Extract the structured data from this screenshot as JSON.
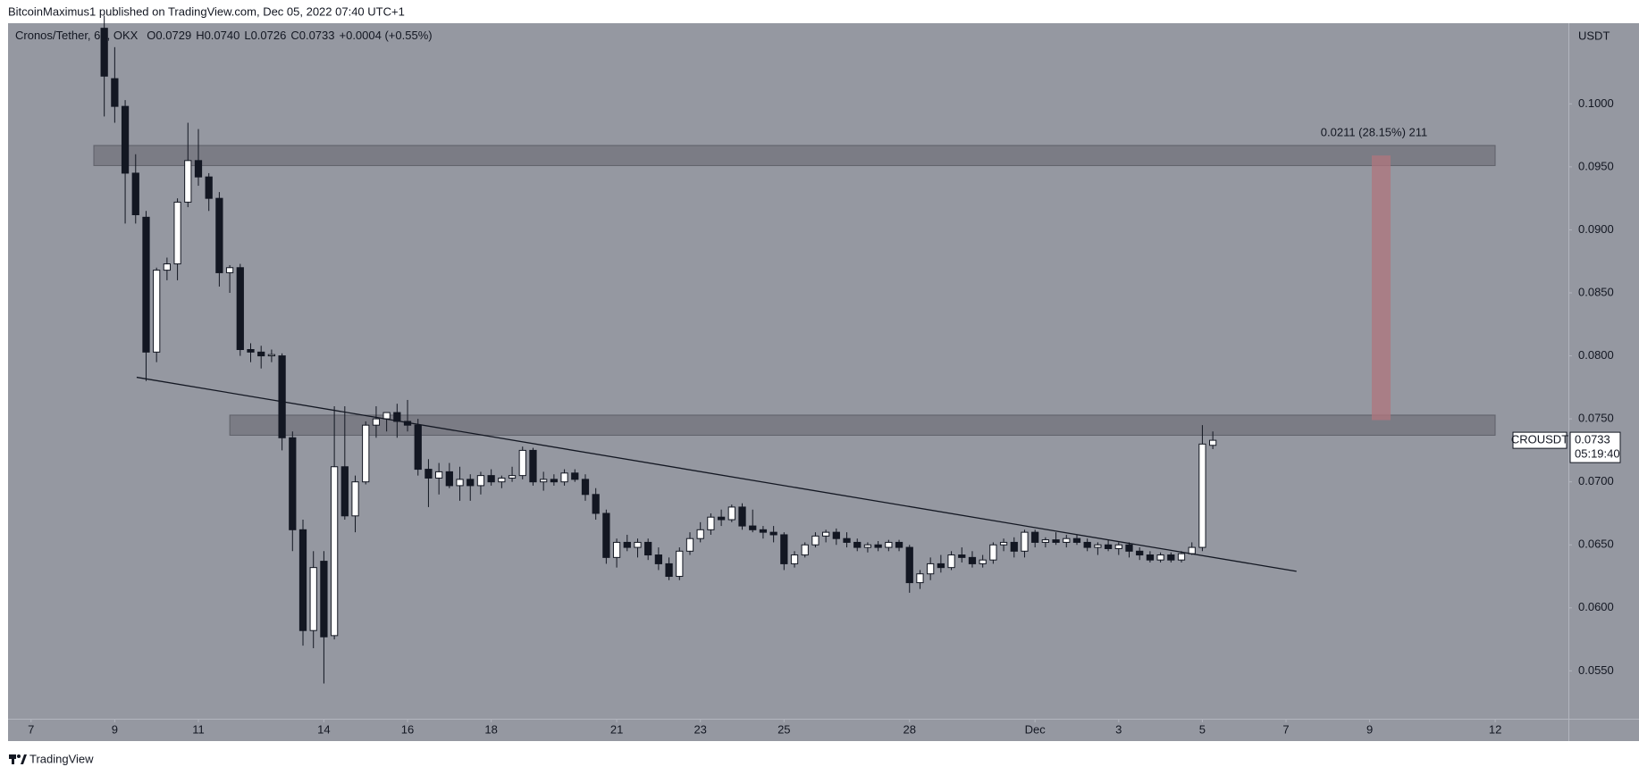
{
  "header": "BitcoinMaximus1 published on TradingView.com, Dec 05, 2022 07:40 UTC+1",
  "footer": "TradingView",
  "chart_data": {
    "type": "candlestick",
    "title": "Cronos/Tether, 6h, OKX",
    "ohlc_legend": [
      {
        "label": "O",
        "value": "0.0729"
      },
      {
        "label": "H",
        "value": "0.0740"
      },
      {
        "label": "L",
        "value": "0.0726"
      },
      {
        "label": "C",
        "value": "0.0733"
      }
    ],
    "change": "+0.0004 (+0.55%)",
    "y_axis_label": "USDT",
    "x": [
      8.75,
      9,
      9.25,
      9.5,
      9.75,
      10,
      10.25,
      10.5,
      10.75,
      11,
      11.25,
      11.5,
      11.75,
      12,
      12.25,
      12.5,
      12.75,
      13,
      13.25,
      13.5,
      13.75,
      14,
      14.25,
      14.5,
      14.75,
      15,
      15.25,
      15.5,
      15.75,
      16,
      16.25,
      16.5,
      16.75,
      17,
      17.25,
      17.5,
      17.75,
      18,
      18.25,
      18.5,
      18.75,
      19,
      19.25,
      19.5,
      19.75,
      20,
      20.25,
      20.5,
      20.75,
      21,
      21.25,
      21.5,
      21.75,
      22,
      22.25,
      22.5,
      22.75,
      23,
      23.25,
      23.5,
      23.75,
      24,
      24.25,
      24.5,
      24.75,
      25,
      25.25,
      25.5,
      25.75,
      26,
      26.25,
      26.5,
      26.75,
      27,
      27.25,
      27.5,
      27.75,
      28,
      28.25,
      28.5,
      28.75,
      29,
      29.25,
      29.5,
      29.75,
      30,
      30.25,
      30.5,
      30.75,
      31,
      31.25,
      31.5,
      31.75,
      32,
      32.25,
      32.5,
      32.75,
      33,
      33.25,
      33.5,
      33.75,
      34,
      34.25,
      34.5,
      34.75,
      35,
      35.25
    ],
    "series": [
      {
        "name": "CROUSDT",
        "up_color": "#ffffff",
        "down_color": "#131722",
        "open": [
          0.106,
          0.102,
          0.0998,
          0.0945,
          0.091,
          0.0803,
          0.0868,
          0.0873,
          0.0922,
          0.0955,
          0.0942,
          0.0925,
          0.0866,
          0.087,
          0.0805,
          0.0803,
          0.08,
          0.08,
          0.0735,
          0.0662,
          0.0582,
          0.0637,
          0.0578,
          0.0712,
          0.0673,
          0.07,
          0.0745,
          0.075,
          0.0755,
          0.0748,
          0.0745,
          0.071,
          0.0703,
          0.0708,
          0.0697,
          0.0702,
          0.0697,
          0.0705,
          0.07,
          0.0703,
          0.0705,
          0.0725,
          0.07,
          0.0702,
          0.07,
          0.0707,
          0.0702,
          0.069,
          0.0675,
          0.064,
          0.0652,
          0.0648,
          0.0652,
          0.0642,
          0.0635,
          0.0625,
          0.0645,
          0.0655,
          0.0662,
          0.0672,
          0.067,
          0.068,
          0.0665,
          0.0662,
          0.066,
          0.0658,
          0.0635,
          0.0642,
          0.065,
          0.0657,
          0.066,
          0.0655,
          0.0652,
          0.0648,
          0.065,
          0.0648,
          0.0652,
          0.0648,
          0.062,
          0.0627,
          0.0635,
          0.0632,
          0.0642,
          0.064,
          0.0635,
          0.0638,
          0.065,
          0.0652,
          0.0645,
          0.066,
          0.0652,
          0.0654,
          0.0652,
          0.0655,
          0.0652,
          0.0648,
          0.065,
          0.0647,
          0.065,
          0.0645,
          0.0642,
          0.0638,
          0.0642,
          0.0638,
          0.0643,
          0.0648,
          0.0729
        ],
        "high": [
          0.107,
          0.1045,
          0.1003,
          0.096,
          0.0915,
          0.087,
          0.0878,
          0.0925,
          0.0985,
          0.098,
          0.0945,
          0.093,
          0.0872,
          0.0873,
          0.081,
          0.0808,
          0.0805,
          0.0802,
          0.074,
          0.067,
          0.0645,
          0.0645,
          0.076,
          0.076,
          0.0705,
          0.0748,
          0.076,
          0.0755,
          0.0762,
          0.0765,
          0.075,
          0.0718,
          0.0715,
          0.0715,
          0.0712,
          0.0706,
          0.0708,
          0.071,
          0.0705,
          0.0712,
          0.0728,
          0.0727,
          0.0708,
          0.0706,
          0.071,
          0.071,
          0.0706,
          0.0695,
          0.0678,
          0.0655,
          0.0658,
          0.0655,
          0.0655,
          0.0648,
          0.064,
          0.0648,
          0.066,
          0.0668,
          0.0675,
          0.0678,
          0.0682,
          0.0683,
          0.0678,
          0.0665,
          0.0665,
          0.066,
          0.0645,
          0.0652,
          0.066,
          0.0662,
          0.0663,
          0.066,
          0.0655,
          0.0652,
          0.0653,
          0.0654,
          0.0654,
          0.065,
          0.063,
          0.064,
          0.0642,
          0.0645,
          0.0648,
          0.0645,
          0.0642,
          0.0652,
          0.0655,
          0.0656,
          0.0662,
          0.0662,
          0.0656,
          0.066,
          0.0658,
          0.0658,
          0.0655,
          0.0652,
          0.0654,
          0.0652,
          0.0652,
          0.0648,
          0.0645,
          0.0644,
          0.0644,
          0.0645,
          0.0652,
          0.0745,
          0.074
        ],
        "low": [
          0.099,
          0.0985,
          0.0905,
          0.0905,
          0.078,
          0.0795,
          0.086,
          0.086,
          0.0918,
          0.0935,
          0.0915,
          0.0855,
          0.085,
          0.08,
          0.0795,
          0.079,
          0.0795,
          0.0725,
          0.0645,
          0.057,
          0.0568,
          0.054,
          0.0575,
          0.067,
          0.066,
          0.0698,
          0.0735,
          0.074,
          0.0735,
          0.074,
          0.0705,
          0.068,
          0.069,
          0.0695,
          0.0685,
          0.0685,
          0.069,
          0.0697,
          0.0695,
          0.07,
          0.0702,
          0.0697,
          0.0693,
          0.0697,
          0.0697,
          0.07,
          0.0685,
          0.067,
          0.0635,
          0.0632,
          0.0645,
          0.064,
          0.0638,
          0.063,
          0.0622,
          0.0622,
          0.0642,
          0.0652,
          0.0658,
          0.0665,
          0.0668,
          0.0662,
          0.066,
          0.0655,
          0.0652,
          0.063,
          0.0632,
          0.064,
          0.0648,
          0.0652,
          0.065,
          0.0648,
          0.0645,
          0.0644,
          0.0645,
          0.0645,
          0.0645,
          0.0612,
          0.0615,
          0.0622,
          0.0628,
          0.063,
          0.0636,
          0.0632,
          0.0632,
          0.0635,
          0.0645,
          0.064,
          0.064,
          0.0648,
          0.0648,
          0.065,
          0.0648,
          0.065,
          0.0645,
          0.0642,
          0.0645,
          0.0642,
          0.064,
          0.0638,
          0.0636,
          0.0636,
          0.0636,
          0.0636,
          0.0642,
          0.0645,
          0.0726
        ],
        "close": [
          0.1022,
          0.0998,
          0.0945,
          0.0912,
          0.0803,
          0.0868,
          0.0873,
          0.0922,
          0.0955,
          0.0942,
          0.0925,
          0.0866,
          0.087,
          0.0805,
          0.0803,
          0.08,
          0.0801,
          0.0735,
          0.0662,
          0.0582,
          0.0632,
          0.0577,
          0.0712,
          0.0673,
          0.07,
          0.0745,
          0.075,
          0.0755,
          0.0748,
          0.0745,
          0.071,
          0.0703,
          0.0708,
          0.0697,
          0.0702,
          0.0697,
          0.0705,
          0.07,
          0.0703,
          0.0705,
          0.0725,
          0.07,
          0.0702,
          0.07,
          0.0707,
          0.0702,
          0.069,
          0.0675,
          0.064,
          0.0652,
          0.0648,
          0.0652,
          0.0642,
          0.0635,
          0.0625,
          0.0645,
          0.0655,
          0.0662,
          0.0672,
          0.067,
          0.068,
          0.0665,
          0.0662,
          0.066,
          0.0658,
          0.0635,
          0.0642,
          0.065,
          0.0657,
          0.066,
          0.0655,
          0.0652,
          0.0648,
          0.065,
          0.0648,
          0.0652,
          0.0648,
          0.062,
          0.0627,
          0.0635,
          0.0632,
          0.0642,
          0.064,
          0.0635,
          0.0638,
          0.065,
          0.0652,
          0.0645,
          0.066,
          0.0652,
          0.0654,
          0.0652,
          0.0655,
          0.0652,
          0.0648,
          0.065,
          0.0647,
          0.065,
          0.0645,
          0.0642,
          0.0638,
          0.0642,
          0.0638,
          0.0643,
          0.0648,
          0.073,
          0.0733
        ]
      }
    ],
    "last_price": {
      "label": "0.0733",
      "countdown": "05:19:40"
    },
    "xlim": [
      6.45,
      43.75
    ],
    "xticks": [
      7,
      9,
      11,
      14,
      16,
      18,
      21,
      23,
      25,
      28,
      {
        "value": 31,
        "label": "Dec"
      },
      {
        "value": 33,
        "label": "3"
      },
      {
        "value": 35,
        "label": "5"
      },
      {
        "value": 37,
        "label": "7"
      },
      {
        "value": 39,
        "label": "9"
      },
      {
        "value": 42,
        "label": "12"
      }
    ],
    "ylim": [
      0.0512,
      0.1064
    ],
    "yticks": [
      {
        "value": 0.055,
        "label": "0.0550"
      },
      {
        "value": 0.06,
        "label": "0.0600"
      },
      {
        "value": 0.065,
        "label": "0.0650"
      },
      {
        "value": 0.07,
        "label": "0.0700"
      },
      {
        "value": 0.075,
        "label": "0.0750"
      },
      {
        "value": 0.08,
        "label": "0.0800"
      },
      {
        "value": 0.085,
        "label": "0.0850"
      },
      {
        "value": 0.09,
        "label": "0.0900"
      },
      {
        "value": 0.095,
        "label": "0.0950"
      },
      {
        "value": 0.1,
        "label": "0.1000"
      }
    ],
    "zones": [
      {
        "xlim": [
          8.5,
          42
        ],
        "ylim": [
          0.0951,
          0.0967
        ]
      },
      {
        "xlim": [
          11.75,
          42
        ],
        "ylim": [
          0.0737,
          0.0753
        ]
      }
    ],
    "trendline": {
      "x": [
        9.525,
        37.25
      ],
      "y": [
        0.0783,
        0.0629
      ]
    },
    "measure": {
      "xlim": [
        39.05,
        39.5
      ],
      "ylim": [
        0.0749,
        0.0959
      ],
      "label": "0.0211 (28.15%) 211",
      "color": "#b0757d"
    }
  }
}
